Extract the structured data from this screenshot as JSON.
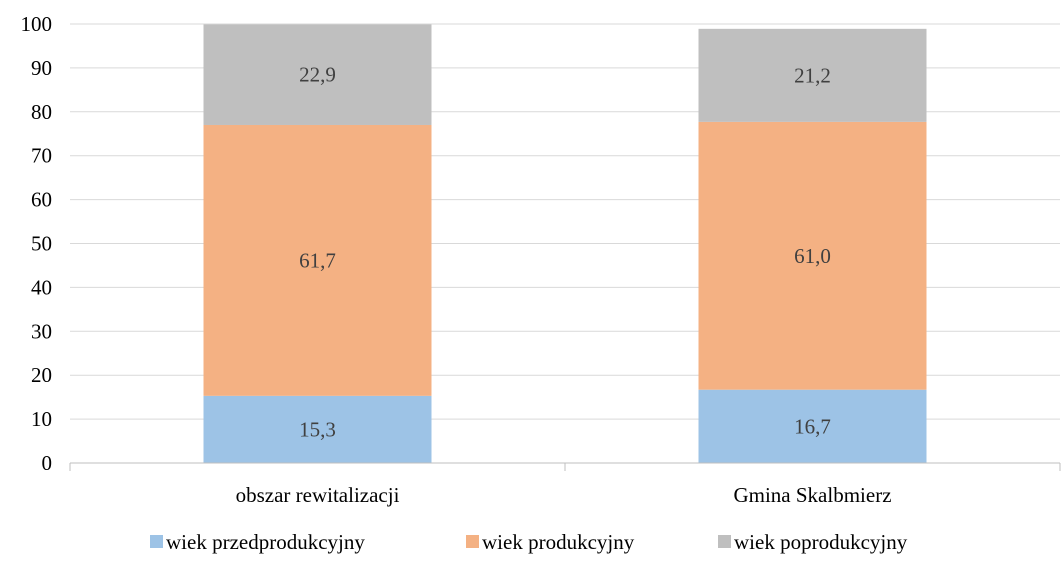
{
  "chart_data": {
    "type": "bar",
    "stacked": true,
    "categories": [
      "obszar rewitalizacji",
      "Gmina Skalbmierz"
    ],
    "series": [
      {
        "name": "wiek przedprodukcyjny",
        "values": [
          15.3,
          16.7
        ],
        "labels": [
          "15,3",
          "16,7"
        ],
        "color": "#9dc3e6"
      },
      {
        "name": "wiek produkcyjny",
        "values": [
          61.7,
          61.0
        ],
        "labels": [
          "61,7",
          "61,0"
        ],
        "color": "#f4b183"
      },
      {
        "name": "wiek poprodukcyjny",
        "values": [
          22.9,
          21.2
        ],
        "labels": [
          "22,9",
          "21,2"
        ],
        "color": "#bfbfbf"
      }
    ],
    "ylim": [
      0,
      100
    ],
    "yticks": [
      "0",
      "10",
      "20",
      "30",
      "40",
      "50",
      "60",
      "70",
      "80",
      "90",
      "100"
    ],
    "grid": true,
    "legend_position": "bottom"
  }
}
